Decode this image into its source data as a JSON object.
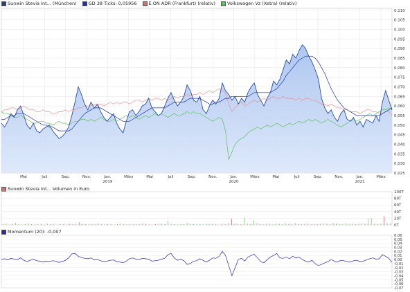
{
  "legend_main": [
    {
      "label": "Sunwin Stevia Int... (München)",
      "color": "#1f3f8f"
    },
    {
      "label": "GD 38 Ticks: 0,05956",
      "color": "#1f2faf"
    },
    {
      "label": "E.ON ADR (Frankfurt) (relativ)",
      "color": "#e06a6a"
    },
    {
      "label": "Volkswagen Vz (Xetra) (relativ)",
      "color": "#5cc25c"
    }
  ],
  "legend_volume": {
    "label": "Sunwin Stevia Int... Volumen in Euro",
    "color": "#e06a6a"
  },
  "legend_momentum": {
    "label": "Momentum (20): -0,007",
    "color": "#2424c0"
  },
  "chart_data": [
    {
      "type": "line",
      "title": "",
      "x_ticks": [
        "Mai",
        "Juli",
        "Sep.",
        "Nov.",
        "Jan.",
        "März",
        "Mai",
        "Juli",
        "Sep.",
        "Nov.",
        "Jan.",
        "März",
        "Mai",
        "Juli",
        "Sep.",
        "Nov.",
        "Jan.",
        "März"
      ],
      "year_labels": [
        {
          "after": "Jan.",
          "index": 4,
          "year": "2019"
        },
        {
          "index": 10,
          "year": "2020"
        },
        {
          "index": 16,
          "year": "2021"
        }
      ],
      "y_ticks": [
        "0,110",
        "0,105",
        "0,100",
        "0,095",
        "0,090",
        "0,085",
        "0,080",
        "0,075",
        "0,070",
        "0,065",
        "0,060",
        "0,055",
        "0,050",
        "0,045",
        "0,040",
        "0,035",
        "0,030",
        "0,025"
      ],
      "ylim": [
        0.025,
        0.111
      ],
      "series": [
        {
          "name": "Sunwin Stevia Int... (München)",
          "values": [
            0.051,
            0.049,
            0.052,
            0.056,
            0.054,
            0.058,
            0.06,
            0.055,
            0.05,
            0.048,
            0.051,
            0.047,
            0.046,
            0.048,
            0.049,
            0.05,
            0.047,
            0.045,
            0.043,
            0.044,
            0.046,
            0.049,
            0.055,
            0.062,
            0.07,
            0.066,
            0.061,
            0.058,
            0.062,
            0.059,
            0.061,
            0.057,
            0.054,
            0.052,
            0.054,
            0.056,
            0.051,
            0.048,
            0.046,
            0.052,
            0.057,
            0.058,
            0.055,
            0.057,
            0.06,
            0.061,
            0.064,
            0.059,
            0.057,
            0.055,
            0.056,
            0.06,
            0.064,
            0.067,
            0.063,
            0.06,
            0.062,
            0.065,
            0.071,
            0.068,
            0.063,
            0.062,
            0.065,
            0.058,
            0.056,
            0.06,
            0.063,
            0.061,
            0.064,
            0.072,
            0.068,
            0.066,
            0.063,
            0.065,
            0.061,
            0.064,
            0.062,
            0.067,
            0.07,
            0.072,
            0.066,
            0.063,
            0.06,
            0.064,
            0.067,
            0.073,
            0.071,
            0.074,
            0.079,
            0.084,
            0.082,
            0.087,
            0.085,
            0.089,
            0.092,
            0.09,
            0.086,
            0.083,
            0.079,
            0.074,
            0.064,
            0.059,
            0.056,
            0.058,
            0.054,
            0.052,
            0.056,
            0.058,
            0.053,
            0.052,
            0.054,
            0.05,
            0.052,
            0.049,
            0.053,
            0.052,
            0.051,
            0.055,
            0.052,
            0.062,
            0.068,
            0.063,
            0.058
          ],
          "color": "#2a4da0"
        },
        {
          "name": "GD 38 Ticks: 0,05956",
          "values": [
            0.053,
            0.053,
            0.054,
            0.055,
            0.055,
            0.056,
            0.056,
            0.056,
            0.055,
            0.054,
            0.053,
            0.052,
            0.051,
            0.05,
            0.05,
            0.049,
            0.049,
            0.048,
            0.047,
            0.047,
            0.047,
            0.047,
            0.048,
            0.05,
            0.052,
            0.054,
            0.056,
            0.057,
            0.058,
            0.059,
            0.059,
            0.059,
            0.058,
            0.057,
            0.056,
            0.055,
            0.054,
            0.053,
            0.052,
            0.052,
            0.052,
            0.053,
            0.054,
            0.055,
            0.056,
            0.057,
            0.058,
            0.059,
            0.059,
            0.059,
            0.059,
            0.059,
            0.06,
            0.061,
            0.062,
            0.062,
            0.062,
            0.062,
            0.063,
            0.064,
            0.064,
            0.064,
            0.064,
            0.063,
            0.062,
            0.061,
            0.061,
            0.062,
            0.062,
            0.063,
            0.064,
            0.064,
            0.065,
            0.065,
            0.065,
            0.065,
            0.065,
            0.065,
            0.066,
            0.067,
            0.067,
            0.067,
            0.067,
            0.067,
            0.067,
            0.068,
            0.069,
            0.071,
            0.073,
            0.076,
            0.078,
            0.08,
            0.082,
            0.084,
            0.085,
            0.086,
            0.086,
            0.086,
            0.085,
            0.083,
            0.08,
            0.077,
            0.073,
            0.069,
            0.066,
            0.063,
            0.061,
            0.059,
            0.058,
            0.057,
            0.056,
            0.055,
            0.055,
            0.055,
            0.055,
            0.055,
            0.055,
            0.055,
            0.055,
            0.056,
            0.057,
            0.058,
            0.059
          ],
          "color": "#1f2faf"
        },
        {
          "name": "E.ON ADR (Frankfurt) (relativ)",
          "values": [
            0.057,
            0.058,
            0.058,
            0.059,
            0.059,
            0.058,
            0.059,
            0.06,
            0.059,
            0.058,
            0.058,
            0.057,
            0.057,
            0.058,
            0.057,
            0.057,
            0.056,
            0.056,
            0.057,
            0.057,
            0.058,
            0.057,
            0.058,
            0.058,
            0.059,
            0.059,
            0.06,
            0.06,
            0.06,
            0.061,
            0.06,
            0.061,
            0.06,
            0.061,
            0.062,
            0.061,
            0.062,
            0.061,
            0.062,
            0.062,
            0.061,
            0.062,
            0.063,
            0.063,
            0.062,
            0.063,
            0.064,
            0.063,
            0.064,
            0.064,
            0.063,
            0.064,
            0.063,
            0.064,
            0.065,
            0.064,
            0.065,
            0.065,
            0.066,
            0.065,
            0.066,
            0.066,
            0.067,
            0.066,
            0.067,
            0.068,
            0.067,
            0.068,
            0.069,
            0.068,
            0.067,
            0.061,
            0.057,
            0.059,
            0.061,
            0.062,
            0.06,
            0.061,
            0.062,
            0.063,
            0.062,
            0.063,
            0.064,
            0.063,
            0.064,
            0.065,
            0.064,
            0.064,
            0.065,
            0.064,
            0.064,
            0.064,
            0.063,
            0.064,
            0.063,
            0.064,
            0.064,
            0.063,
            0.063,
            0.062,
            0.061,
            0.061,
            0.06,
            0.061,
            0.06,
            0.059,
            0.059,
            0.058,
            0.058,
            0.057,
            0.057,
            0.057,
            0.056,
            0.057,
            0.058,
            0.058,
            0.057,
            0.057,
            0.056,
            0.056,
            0.057,
            0.057,
            0.055
          ],
          "color": "#e89090"
        },
        {
          "name": "Volkswagen Vz (Xetra) (relativ)",
          "values": [
            0.057,
            0.056,
            0.056,
            0.055,
            0.054,
            0.054,
            0.055,
            0.054,
            0.053,
            0.052,
            0.051,
            0.051,
            0.052,
            0.052,
            0.051,
            0.051,
            0.05,
            0.051,
            0.052,
            0.051,
            0.051,
            0.05,
            0.051,
            0.052,
            0.052,
            0.053,
            0.053,
            0.052,
            0.053,
            0.052,
            0.053,
            0.054,
            0.053,
            0.052,
            0.052,
            0.053,
            0.052,
            0.053,
            0.054,
            0.055,
            0.054,
            0.055,
            0.054,
            0.053,
            0.054,
            0.055,
            0.054,
            0.055,
            0.056,
            0.055,
            0.056,
            0.055,
            0.054,
            0.055,
            0.056,
            0.055,
            0.055,
            0.056,
            0.057,
            0.056,
            0.057,
            0.056,
            0.056,
            0.055,
            0.054,
            0.053,
            0.052,
            0.053,
            0.054,
            0.053,
            0.047,
            0.032,
            0.036,
            0.04,
            0.042,
            0.043,
            0.044,
            0.046,
            0.047,
            0.048,
            0.049,
            0.048,
            0.049,
            0.05,
            0.049,
            0.05,
            0.051,
            0.05,
            0.049,
            0.05,
            0.051,
            0.05,
            0.051,
            0.052,
            0.051,
            0.052,
            0.053,
            0.052,
            0.053,
            0.052,
            0.051,
            0.052,
            0.053,
            0.052,
            0.051,
            0.05,
            0.049,
            0.05,
            0.051,
            0.052,
            0.053,
            0.052,
            0.053,
            0.054,
            0.055,
            0.056,
            0.055,
            0.056,
            0.057,
            0.058,
            0.058,
            0.059,
            0.058
          ],
          "color": "#5cc25c"
        }
      ]
    },
    {
      "type": "bar",
      "title": "",
      "y_ticks": [
        "100T",
        "80T",
        "60T",
        "40T",
        "20T",
        "0T"
      ],
      "ylim": [
        0,
        100
      ],
      "values": [
        2,
        4,
        1,
        3,
        6,
        2,
        1,
        2,
        5,
        2,
        1,
        3,
        2,
        1,
        4,
        2,
        3,
        1,
        2,
        2,
        1,
        3,
        2,
        4,
        8,
        3,
        2,
        1,
        3,
        2,
        5,
        2,
        1,
        2,
        3,
        1,
        2,
        4,
        2,
        1,
        3,
        2,
        1,
        2,
        5,
        3,
        2,
        1,
        2,
        3,
        4,
        2,
        12,
        3,
        2,
        1,
        3,
        2,
        6,
        4,
        2,
        3,
        2,
        1,
        3,
        2,
        4,
        2,
        1,
        3,
        2,
        6,
        18,
        5,
        3,
        2,
        22,
        4,
        3,
        14,
        6,
        3,
        2,
        4,
        3,
        2,
        5,
        3,
        2,
        4,
        3,
        2,
        6,
        3,
        2,
        3,
        4,
        2,
        3,
        2,
        4,
        5,
        3,
        2,
        6,
        4,
        3,
        2,
        5,
        3,
        4,
        2,
        3,
        5,
        4,
        18,
        20,
        4,
        3,
        5,
        26,
        6,
        4
      ]
    },
    {
      "type": "line",
      "title": "",
      "y_ticks": [
        "0,06",
        "0,05",
        "0,04",
        "0,03",
        "0,02",
        "0,01",
        "0,00",
        "-0,01",
        "-0,02",
        "-0,03",
        "-0,04",
        "-0,05",
        "-0,06",
        "-0,07"
      ],
      "ylim": [
        -0.07,
        0.06
      ],
      "series": [
        {
          "name": "Momentum (20)",
          "values": [
            0.0,
            0.002,
            -0.001,
            0.003,
            0.001,
            0.0,
            0.004,
            -0.002,
            -0.005,
            -0.002,
            0.001,
            -0.003,
            -0.004,
            -0.006,
            -0.004,
            -0.005,
            -0.003,
            -0.004,
            -0.007,
            -0.005,
            -0.002,
            0.004,
            0.014,
            0.015,
            0.008,
            0.005,
            0.003,
            0.002,
            0.004,
            -0.001,
            0.0,
            -0.003,
            -0.005,
            -0.004,
            -0.002,
            -0.001,
            -0.005,
            -0.006,
            -0.008,
            -0.004,
            0.002,
            0.004,
            0.001,
            0.0,
            0.003,
            0.002,
            0.001,
            -0.004,
            -0.003,
            -0.002,
            0.001,
            0.003,
            0.012,
            0.015,
            0.004,
            -0.002,
            0.001,
            -0.003,
            -0.012,
            -0.01,
            -0.004,
            -0.003,
            0.002,
            -0.002,
            -0.006,
            -0.002,
            0.004,
            0.003,
            0.008,
            0.02,
            0.01,
            -0.015,
            -0.04,
            -0.02,
            0.0,
            0.003,
            -0.004,
            0.006,
            0.01,
            0.013,
            0.004,
            -0.005,
            -0.008,
            0.0,
            0.006,
            0.01,
            0.015,
            0.004,
            0.003,
            0.006,
            0.002,
            0.008,
            0.004,
            0.006,
            0.0,
            -0.004,
            -0.006,
            -0.002,
            -0.01,
            -0.015,
            -0.012,
            -0.008,
            -0.005,
            0.0,
            -0.004,
            -0.006,
            -0.002,
            -0.003,
            -0.005,
            -0.006,
            -0.003,
            -0.002,
            -0.005,
            -0.004,
            -0.001,
            0.002,
            0.004,
            0.001,
            0.002,
            0.012,
            0.008,
            0.003,
            -0.007
          ],
          "color": "#2424c0"
        }
      ]
    }
  ]
}
